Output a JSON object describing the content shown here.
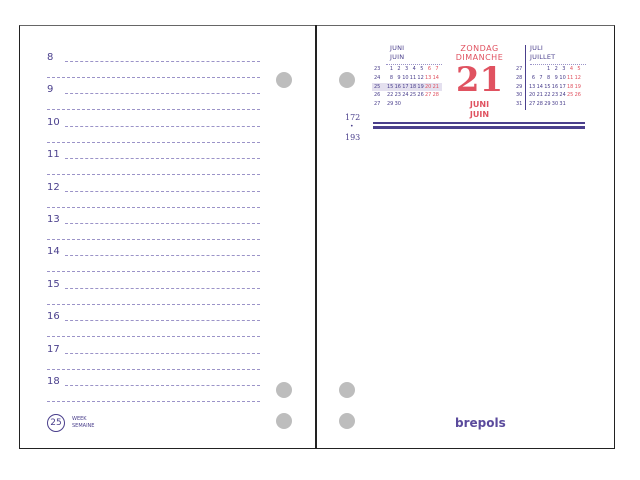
{
  "left_page": {
    "hours": [
      "8",
      "9",
      "10",
      "11",
      "12",
      "13",
      "14",
      "15",
      "16",
      "17",
      "18"
    ],
    "week_number": "25",
    "week_label_nl": "WEEK",
    "week_label_fr": "SEMAINE"
  },
  "right_page": {
    "day_nl": "ZONDAG",
    "day_fr": "DIMANCHE",
    "day_number": "21",
    "month_nl": "JUNI",
    "month_fr": "JUIN",
    "day_of_year": "172",
    "days_remaining": "193",
    "separator": "•",
    "brand": "brepols",
    "june": {
      "title_nl": "JUNI",
      "title_fr": "JUIN",
      "weeks": [
        {
          "wk": "23",
          "days": [
            "1",
            "2",
            "3",
            "4",
            "5",
            "6",
            "7"
          ]
        },
        {
          "wk": "24",
          "days": [
            "8",
            "9",
            "10",
            "11",
            "12",
            "13",
            "14"
          ]
        },
        {
          "wk": "25",
          "days": [
            "15",
            "16",
            "17",
            "18",
            "19",
            "20",
            "21"
          ]
        },
        {
          "wk": "26",
          "days": [
            "22",
            "23",
            "24",
            "25",
            "26",
            "27",
            "28"
          ]
        },
        {
          "wk": "27",
          "days": [
            "29",
            "30",
            "",
            "",
            "",
            "",
            ""
          ]
        }
      ]
    },
    "july": {
      "title_nl": "JULI",
      "title_fr": "JUILLET",
      "weeks": [
        {
          "wk": "27",
          "days": [
            "",
            "",
            "1",
            "2",
            "3",
            "4",
            "5"
          ]
        },
        {
          "wk": "28",
          "days": [
            "6",
            "7",
            "8",
            "9",
            "10",
            "11",
            "12"
          ]
        },
        {
          "wk": "29",
          "days": [
            "13",
            "14",
            "15",
            "16",
            "17",
            "18",
            "19"
          ]
        },
        {
          "wk": "30",
          "days": [
            "20",
            "21",
            "22",
            "23",
            "24",
            "25",
            "26"
          ]
        },
        {
          "wk": "31",
          "days": [
            "27",
            "28",
            "29",
            "30",
            "31",
            "",
            ""
          ]
        }
      ]
    }
  },
  "colors": {
    "accent": "#4a3f8c",
    "red": "#e05260",
    "hole": "#bdbdbd"
  }
}
